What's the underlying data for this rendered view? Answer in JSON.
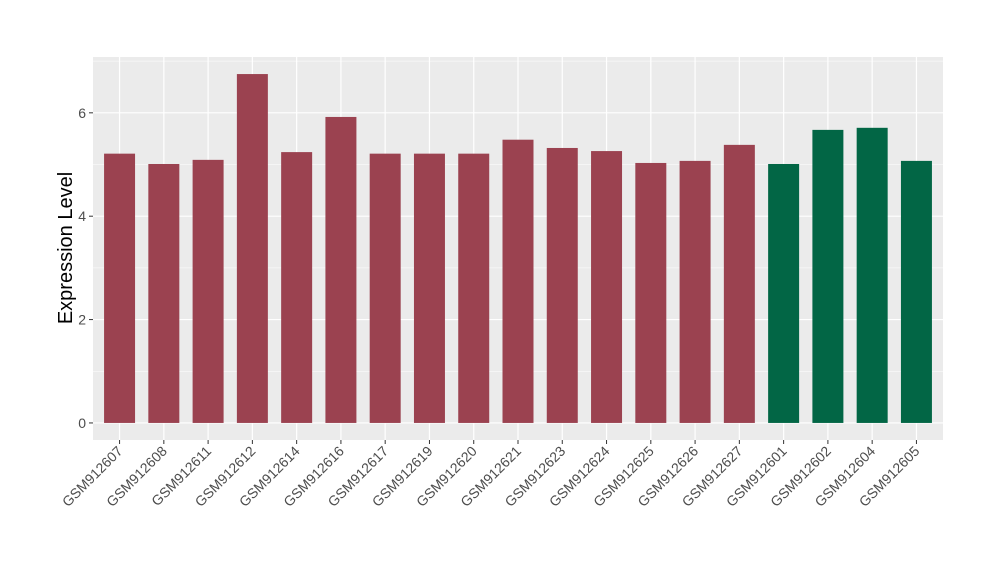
{
  "chart_data": {
    "type": "bar",
    "title": "",
    "xlabel": "",
    "ylabel": "Expression Level",
    "ylim": [
      -0.33,
      7.08
    ],
    "yticks": [
      0,
      2,
      4,
      6
    ],
    "grid": true,
    "categories": [
      "GSM912607",
      "GSM912608",
      "GSM912611",
      "GSM912612",
      "GSM912614",
      "GSM912616",
      "GSM912617",
      "GSM912619",
      "GSM912620",
      "GSM912621",
      "GSM912623",
      "GSM912624",
      "GSM912625",
      "GSM912626",
      "GSM912627",
      "GSM912601",
      "GSM912602",
      "GSM912604",
      "GSM912605"
    ],
    "values": [
      5.21,
      5.01,
      5.09,
      6.75,
      5.24,
      5.92,
      5.21,
      5.21,
      5.21,
      5.48,
      5.32,
      5.26,
      5.03,
      5.07,
      5.38,
      5.01,
      5.67,
      5.71,
      5.07
    ],
    "groups": [
      0,
      0,
      0,
      0,
      0,
      0,
      0,
      0,
      0,
      0,
      0,
      0,
      0,
      0,
      0,
      1,
      1,
      1,
      1
    ],
    "group_colors": [
      "#9b4250",
      "#026645"
    ]
  }
}
